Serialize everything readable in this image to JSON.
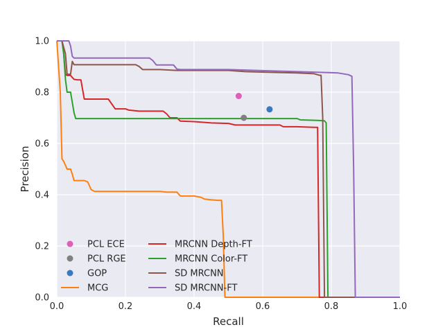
{
  "chart_data": {
    "type": "line",
    "title": "",
    "xlabel": "Recall",
    "ylabel": "Precision",
    "xlim": [
      0.0,
      1.0
    ],
    "ylim": [
      0.0,
      1.0
    ],
    "xticks": [
      "0.0",
      "0.2",
      "0.4",
      "0.6",
      "0.8",
      "1.0"
    ],
    "yticks": [
      "0.0",
      "0.2",
      "0.4",
      "0.6",
      "0.8",
      "1.0"
    ],
    "grid": true,
    "background": "#eaeaf2",
    "legend_position": "bottom-left",
    "points": [
      {
        "name": "PCL ECE",
        "x": 0.53,
        "y": 0.785,
        "color": "#dd5fb8"
      },
      {
        "name": "PCL RGE",
        "x": 0.545,
        "y": 0.7,
        "color": "#808080"
      },
      {
        "name": "GOP",
        "x": 0.62,
        "y": 0.733,
        "color": "#3a78c0"
      }
    ],
    "series": [
      {
        "name": "MCG",
        "color": "#ff7f0e",
        "x": [
          0.0,
          0.01,
          0.015,
          0.02,
          0.03,
          0.04,
          0.045,
          0.05,
          0.08,
          0.09,
          0.1,
          0.11,
          0.3,
          0.32,
          0.35,
          0.36,
          0.4,
          0.42,
          0.43,
          0.45,
          0.47,
          0.48,
          0.485,
          0.49,
          0.5,
          1.0
        ],
        "y": [
          1.0,
          0.8,
          0.54,
          0.53,
          0.5,
          0.5,
          0.48,
          0.455,
          0.455,
          0.45,
          0.42,
          0.413,
          0.413,
          0.41,
          0.41,
          0.395,
          0.395,
          0.39,
          0.383,
          0.38,
          0.378,
          0.378,
          0.24,
          0.0,
          0.0,
          0.0
        ]
      },
      {
        "name": "MRCNN Depth-FT",
        "color": "#d62728",
        "x": [
          0.015,
          0.02,
          0.025,
          0.03,
          0.04,
          0.05,
          0.06,
          0.07,
          0.08,
          0.15,
          0.17,
          0.2,
          0.21,
          0.24,
          0.31,
          0.32,
          0.33,
          0.35,
          0.36,
          0.4,
          0.45,
          0.5,
          0.52,
          0.65,
          0.66,
          0.7,
          0.75,
          0.76,
          0.765,
          1.0
        ],
        "y": [
          1.0,
          0.95,
          0.87,
          0.865,
          0.865,
          0.85,
          0.848,
          0.848,
          0.773,
          0.773,
          0.735,
          0.735,
          0.73,
          0.726,
          0.726,
          0.715,
          0.7,
          0.7,
          0.687,
          0.685,
          0.68,
          0.678,
          0.672,
          0.672,
          0.665,
          0.665,
          0.663,
          0.663,
          0.0,
          0.0
        ]
      },
      {
        "name": "MRCNN Color-FT",
        "color": "#2ca02c",
        "x": [
          0.015,
          0.02,
          0.025,
          0.03,
          0.04,
          0.05,
          0.055,
          0.7,
          0.71,
          0.76,
          0.78,
          0.785,
          0.79,
          1.0
        ],
        "y": [
          1.0,
          0.95,
          0.85,
          0.8,
          0.8,
          0.72,
          0.697,
          0.697,
          0.692,
          0.69,
          0.688,
          0.68,
          0.0,
          0.0
        ]
      },
      {
        "name": "SD MRCNN",
        "color": "#8c564b",
        "x": [
          0.015,
          0.025,
          0.03,
          0.04,
          0.045,
          0.05,
          0.23,
          0.24,
          0.25,
          0.3,
          0.35,
          0.5,
          0.55,
          0.7,
          0.75,
          0.765,
          0.77,
          0.775,
          0.78,
          1.0
        ],
        "y": [
          1.0,
          0.95,
          0.87,
          0.87,
          0.92,
          0.907,
          0.907,
          0.9,
          0.888,
          0.888,
          0.885,
          0.885,
          0.88,
          0.875,
          0.872,
          0.866,
          0.866,
          0.7,
          0.0,
          0.0
        ]
      },
      {
        "name": "SD MRCNN-FT",
        "color": "#9467bd",
        "x": [
          0.0,
          0.035,
          0.04,
          0.045,
          0.05,
          0.27,
          0.28,
          0.29,
          0.34,
          0.35,
          0.36,
          0.5,
          0.7,
          0.8,
          0.82,
          0.85,
          0.86,
          0.865,
          0.87,
          1.0
        ],
        "y": [
          1.0,
          1.0,
          0.98,
          0.94,
          0.933,
          0.933,
          0.923,
          0.906,
          0.906,
          0.89,
          0.888,
          0.888,
          0.88,
          0.876,
          0.875,
          0.868,
          0.862,
          0.5,
          0.0,
          0.0
        ]
      }
    ],
    "legend": {
      "columns": [
        [
          "PCL ECE",
          "PCL RGE",
          "GOP",
          "MCG"
        ],
        [
          "MRCNN Depth-FT",
          "MRCNN Color-FT",
          "SD MRCNN",
          "SD MRCNN-FT"
        ]
      ]
    }
  }
}
